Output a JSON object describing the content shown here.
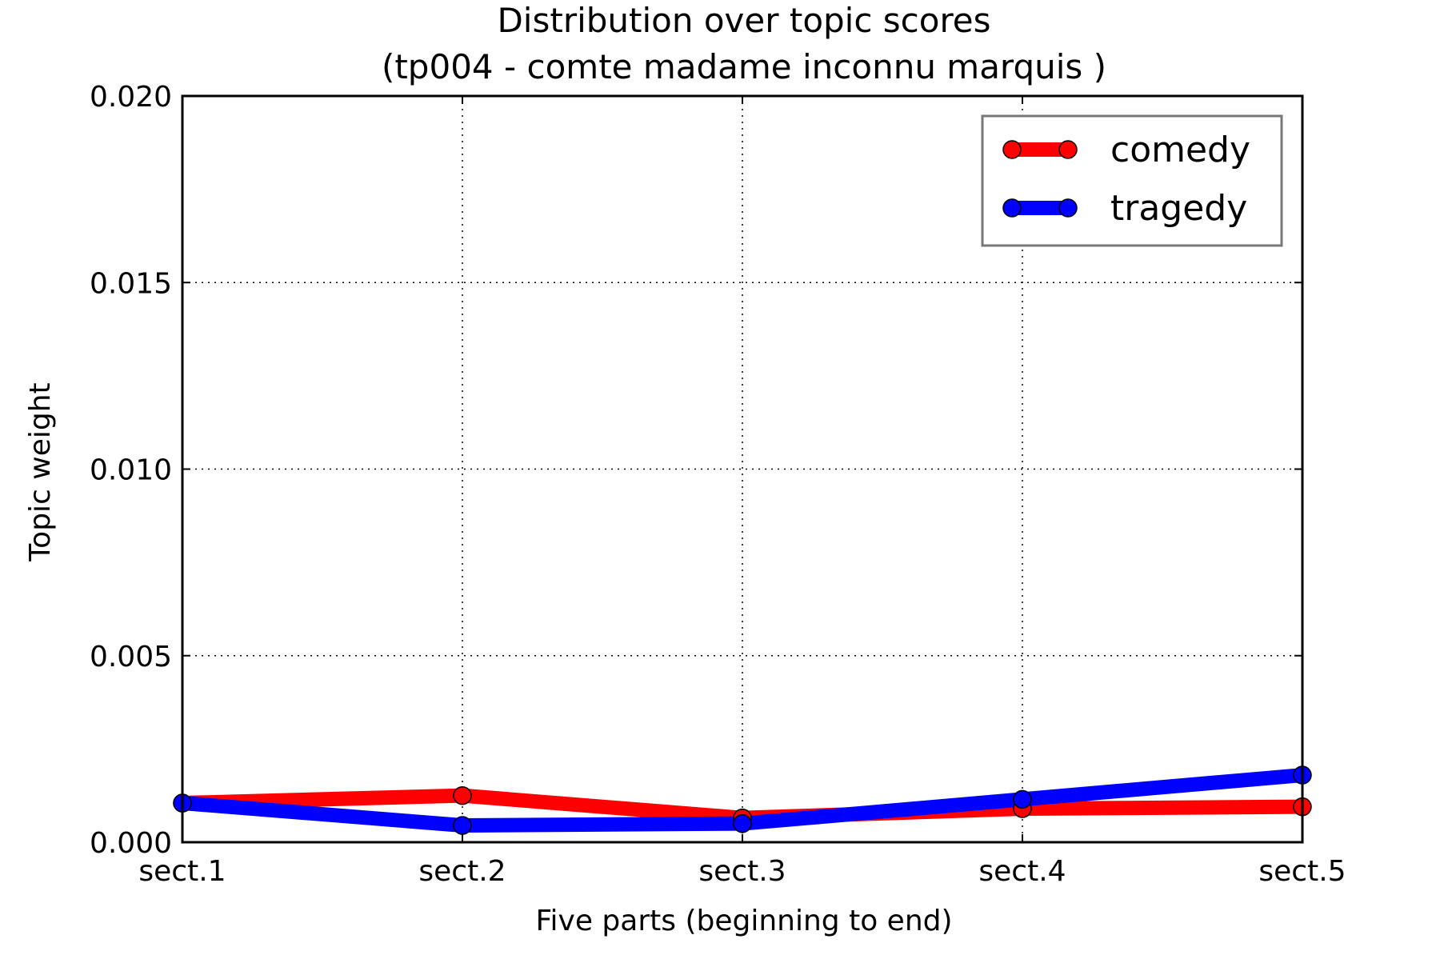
{
  "chart_data": {
    "type": "line",
    "title": "Distribution over topic scores",
    "subtitle": "(tp004 - comte madame inconnu marquis )",
    "xlabel": "Five parts (beginning to end)",
    "ylabel": "Topic weight",
    "categories": [
      "sect.1",
      "sect.2",
      "sect.3",
      "sect.4",
      "sect.5"
    ],
    "ylim": [
      0,
      0.02
    ],
    "yticks": [
      "0.000",
      "0.005",
      "0.010",
      "0.015",
      "0.020"
    ],
    "grid": true,
    "legend_position": "top-right",
    "series": [
      {
        "name": "comedy",
        "color": "#ff0000",
        "values": [
          0.00105,
          0.00125,
          0.00065,
          0.0009,
          0.00095
        ]
      },
      {
        "name": "tragedy",
        "color": "#0000ff",
        "values": [
          0.00105,
          0.00045,
          0.0005,
          0.00115,
          0.0018
        ]
      }
    ]
  }
}
